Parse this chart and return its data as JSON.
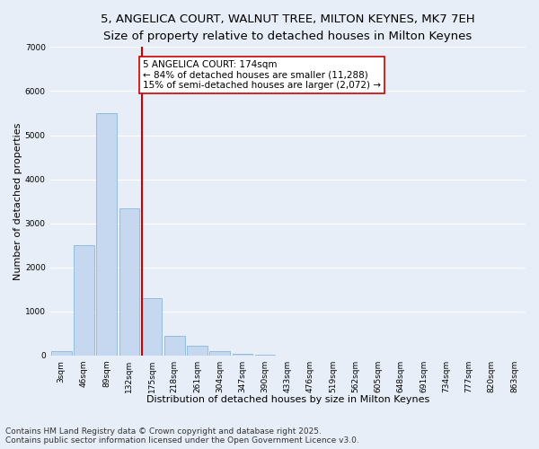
{
  "title_line1": "5, ANGELICA COURT, WALNUT TREE, MILTON KEYNES, MK7 7EH",
  "title_line2": "Size of property relative to detached houses in Milton Keynes",
  "xlabel": "Distribution of detached houses by size in Milton Keynes",
  "ylabel": "Number of detached properties",
  "bar_labels": [
    "3sqm",
    "46sqm",
    "89sqm",
    "132sqm",
    "175sqm",
    "218sqm",
    "261sqm",
    "304sqm",
    "347sqm",
    "390sqm",
    "433sqm",
    "476sqm",
    "519sqm",
    "562sqm",
    "605sqm",
    "648sqm",
    "691sqm",
    "734sqm",
    "777sqm",
    "820sqm",
    "863sqm"
  ],
  "bar_values": [
    100,
    2500,
    5500,
    3350,
    1300,
    450,
    230,
    100,
    50,
    10,
    0,
    0,
    0,
    0,
    0,
    0,
    0,
    0,
    0,
    0,
    0
  ],
  "bar_color": "#c5d8ef",
  "bar_edge_color": "#7aafd4",
  "vline_color": "#cc0000",
  "annotation_text": "5 ANGELICA COURT: 174sqm\n← 84% of detached houses are smaller (11,288)\n15% of semi-detached houses are larger (2,072) →",
  "annotation_box_color": "#ffffff",
  "annotation_box_edge": "#cc0000",
  "ylim": [
    0,
    7000
  ],
  "yticks": [
    0,
    1000,
    2000,
    3000,
    4000,
    5000,
    6000,
    7000
  ],
  "background_color": "#e8eef8",
  "grid_color": "#ffffff",
  "footer_line1": "Contains HM Land Registry data © Crown copyright and database right 2025.",
  "footer_line2": "Contains public sector information licensed under the Open Government Licence v3.0.",
  "title_fontsize": 9.5,
  "subtitle_fontsize": 8.5,
  "axis_label_fontsize": 8,
  "tick_fontsize": 6.5,
  "annotation_fontsize": 7.5,
  "footer_fontsize": 6.5
}
